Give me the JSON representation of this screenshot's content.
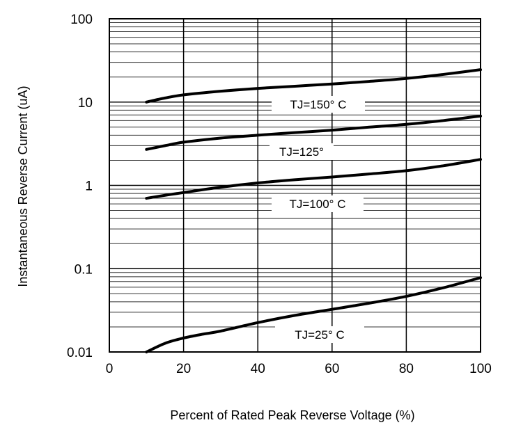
{
  "chart_data": {
    "type": "line",
    "title": "",
    "xlabel": "Percent of Rated Peak Reverse Voltage (%)",
    "ylabel": "Instantaneous Reverse Current (uA)",
    "xlim": [
      0,
      100
    ],
    "ylim": [
      0.01,
      100
    ],
    "yscale": "log",
    "grid": true,
    "legend": "none",
    "x_ticks": [
      "0",
      "20",
      "40",
      "60",
      "80",
      "100"
    ],
    "y_ticks": [
      "0.01",
      "0.1",
      "1",
      "10",
      "100"
    ],
    "series": [
      {
        "name": "TJ=150° C",
        "x": [
          10,
          15,
          20,
          30,
          40,
          50,
          60,
          70,
          80,
          90,
          100
        ],
        "y": [
          10,
          11.2,
          12.2,
          13.5,
          14.6,
          15.5,
          16.5,
          17.7,
          19.2,
          21.5,
          24.5
        ]
      },
      {
        "name": "TJ=125°",
        "x": [
          10,
          15,
          20,
          30,
          40,
          50,
          60,
          70,
          80,
          90,
          100
        ],
        "y": [
          2.7,
          3.0,
          3.3,
          3.7,
          4.0,
          4.3,
          4.6,
          5.0,
          5.4,
          6.0,
          6.8
        ]
      },
      {
        "name": "TJ=100° C",
        "x": [
          10,
          15,
          20,
          30,
          40,
          50,
          60,
          70,
          80,
          90,
          100
        ],
        "y": [
          0.7,
          0.76,
          0.82,
          0.95,
          1.07,
          1.17,
          1.26,
          1.37,
          1.5,
          1.72,
          2.05
        ]
      },
      {
        "name": "TJ=25° C",
        "x": [
          10,
          15,
          20,
          25,
          30,
          40,
          50,
          60,
          70,
          80,
          90,
          100
        ],
        "y": [
          0.01,
          0.0127,
          0.0147,
          0.0163,
          0.0178,
          0.0225,
          0.0275,
          0.0325,
          0.0385,
          0.0465,
          0.059,
          0.078
        ]
      }
    ]
  }
}
